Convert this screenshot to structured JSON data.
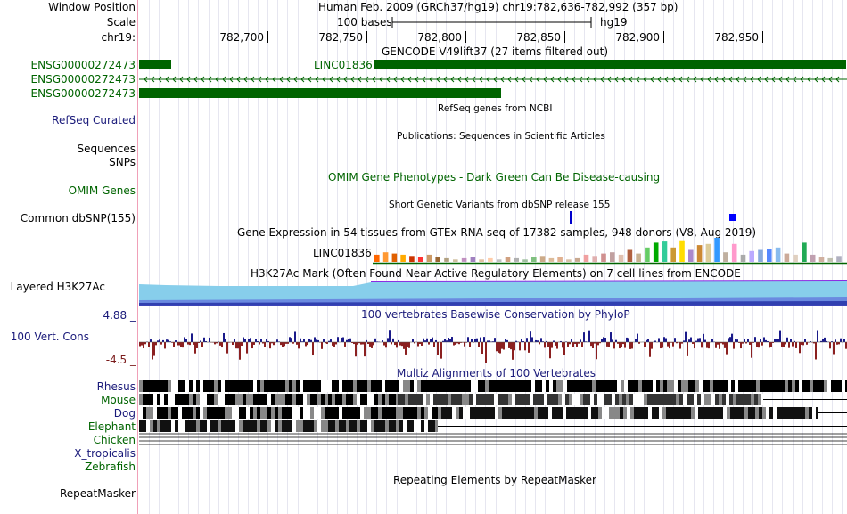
{
  "labels": {
    "window_position": "Window Position",
    "scale": "Scale",
    "chrom": "chr19:",
    "gene1": "ENSG00000272473",
    "gene2": "ENSG00000272473",
    "gene3": "ENSG00000272473",
    "refseq": "RefSeq Curated",
    "sequences": "Sequences",
    "snps": "SNPs",
    "omim": "OMIM Genes",
    "dbsnp": "Common dbSNP(155)",
    "h3k27ac": "Layered H3K27Ac",
    "cons_max": "4.88 _",
    "cons_name": "100 Vert. Cons",
    "cons_min": "-4.5 _",
    "rhesus": "Rhesus",
    "mouse": "Mouse",
    "dog": "Dog",
    "elephant": "Elephant",
    "chicken": "Chicken",
    "xtrop": "X_tropicalis",
    "zebrafish": "Zebrafish",
    "repeatmasker": "RepeatMasker"
  },
  "header": {
    "position": "Human Feb. 2009 (GRCh37/hg19)   chr19:782,636-782,992 (357 bp)",
    "scale_text": "100 bases",
    "assembly": "hg19",
    "ticks": [
      "782,700",
      "782,750",
      "782,800",
      "782,850",
      "782,900",
      "782,950"
    ]
  },
  "tracks": {
    "gencode_title": "GENCODE V49lift37 (27 items filtered out)",
    "gene_name": "LINC01836",
    "refseq_title": "RefSeq genes from NCBI",
    "publications_title": "Publications: Sequences in Scientific Articles",
    "omim_title": "OMIM Gene Phenotypes - Dark Green Can Be Disease-causing",
    "dbsnp_title": "Short Genetic Variants from dbSNP release 155",
    "gtex_title": "Gene Expression in 54 tissues from GTEx RNA-seq of 17382 samples, 948 donors (V8, Aug 2019)",
    "gtex_gene": "LINC01836",
    "h3k27_title": "H3K27Ac Mark (Often Found Near Active Regulatory Elements) on 7 cell lines from ENCODE",
    "cons_title": "100 vertebrates Basewise Conservation by PhyloP",
    "multiz_title": "Multiz Alignments of 100 Vertebrates",
    "repeat_title": "Repeating Elements by RepeatMasker"
  },
  "colors": {
    "gene": "#006400",
    "navy": "#1a1a7a",
    "cons_pos": "#1a1a8a",
    "cons_neg": "#8b2020",
    "h3k27_light": "#87ceeb",
    "h3k27_dark": "#4040c0",
    "snp_blue": "#0000ff"
  },
  "gtex_values": [
    0.3,
    0.4,
    0.35,
    0.3,
    0.25,
    0.2,
    0.3,
    0.2,
    0.15,
    0.1,
    0.15,
    0.2,
    0.1,
    0.15,
    0.1,
    0.2,
    0.15,
    0.1,
    0.2,
    0.25,
    0.15,
    0.2,
    0.1,
    0.15,
    0.3,
    0.25,
    0.35,
    0.4,
    0.3,
    0.5,
    0.35,
    0.6,
    0.8,
    0.85,
    0.6,
    0.9,
    0.5,
    0.7,
    0.75,
    1.0,
    0.4,
    0.75,
    0.3,
    0.45,
    0.5,
    0.55,
    0.6,
    0.35,
    0.3,
    0.8,
    0.3,
    0.2,
    0.15,
    0.25
  ]
}
